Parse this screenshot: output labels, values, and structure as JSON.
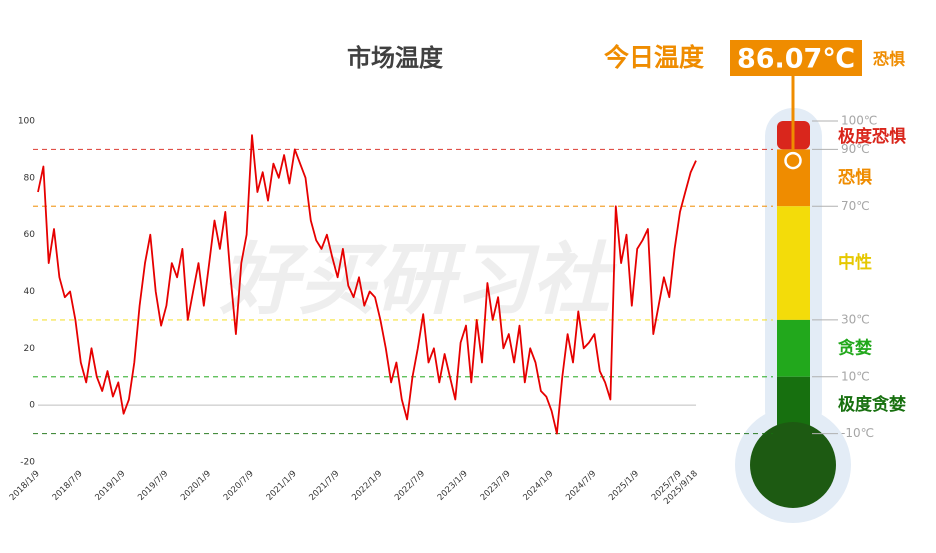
{
  "chart_data": {
    "type": "line",
    "title": "市场温度",
    "watermark": "好买研习社",
    "categories": [
      "2018/1/9",
      null,
      null,
      null,
      null,
      null,
      null,
      null,
      "2018/7/9",
      null,
      null,
      null,
      null,
      null,
      null,
      null,
      "2019/1/9",
      null,
      null,
      null,
      null,
      null,
      null,
      null,
      "2019/7/9",
      null,
      null,
      null,
      null,
      null,
      null,
      null,
      "2020/1/9",
      null,
      null,
      null,
      null,
      null,
      null,
      null,
      "2020/7/9",
      null,
      null,
      null,
      null,
      null,
      null,
      null,
      "2021/1/9",
      null,
      null,
      null,
      null,
      null,
      null,
      null,
      "2021/7/9",
      null,
      null,
      null,
      null,
      null,
      null,
      null,
      "2022/1/9",
      null,
      null,
      null,
      null,
      null,
      null,
      null,
      "2022/7/9",
      null,
      null,
      null,
      null,
      null,
      null,
      null,
      "2023/1/9",
      null,
      null,
      null,
      null,
      null,
      null,
      null,
      "2023/7/9",
      null,
      null,
      null,
      null,
      null,
      null,
      null,
      "2024/1/9",
      null,
      null,
      null,
      null,
      null,
      null,
      null,
      "2024/7/9",
      null,
      null,
      null,
      null,
      null,
      null,
      null,
      "2025/1/9",
      null,
      null,
      null,
      null,
      null,
      null,
      null,
      "2025/7/9",
      null,
      null,
      "2025/9/18"
    ],
    "series": [
      {
        "name": "市场温度",
        "color": "#e60000",
        "values": [
          75,
          84,
          50,
          62,
          45,
          38,
          40,
          30,
          15,
          8,
          20,
          10,
          5,
          12,
          3,
          8,
          -3,
          2,
          15,
          35,
          50,
          60,
          40,
          28,
          35,
          50,
          45,
          55,
          30,
          40,
          50,
          35,
          50,
          65,
          55,
          68,
          45,
          25,
          50,
          60,
          95,
          75,
          82,
          72,
          85,
          80,
          88,
          78,
          90,
          85,
          80,
          65,
          58,
          55,
          60,
          52,
          45,
          55,
          42,
          38,
          45,
          35,
          40,
          38,
          30,
          20,
          8,
          15,
          2,
          -5,
          10,
          20,
          32,
          15,
          20,
          8,
          18,
          10,
          2,
          22,
          28,
          8,
          30,
          15,
          43,
          30,
          38,
          20,
          25,
          15,
          28,
          8,
          20,
          15,
          5,
          3,
          -2,
          -10,
          10,
          25,
          15,
          33,
          20,
          22,
          25,
          12,
          8,
          2,
          70,
          50,
          60,
          35,
          55,
          58,
          62,
          25,
          35,
          45,
          38,
          55,
          68,
          75,
          82,
          86.07
        ]
      }
    ],
    "ylim": [
      -20,
      100
    ],
    "yticks": [
      -20,
      0,
      20,
      40,
      60,
      80,
      100
    ],
    "current": {
      "label": "今日温度",
      "value": 86.07,
      "value_label": "86.07℃",
      "status": "恐惧"
    },
    "thermometer": {
      "ticks": [
        {
          "value": 100,
          "label": "100℃"
        },
        {
          "value": 90,
          "label": "90℃"
        },
        {
          "value": 70,
          "label": "70℃"
        },
        {
          "value": 30,
          "label": "30℃"
        },
        {
          "value": 10,
          "label": "10℃"
        },
        {
          "value": -10,
          "label": "-10℃"
        }
      ],
      "bands": [
        {
          "from": 90,
          "to": 100,
          "color": "#d9261c",
          "label": "极度恐惧"
        },
        {
          "from": 70,
          "to": 90,
          "color": "#ef8c00",
          "label": "恐惧"
        },
        {
          "from": 30,
          "to": 70,
          "color": "#f3dc0a",
          "label": "中性"
        },
        {
          "from": 10,
          "to": 30,
          "color": "#22a81c",
          "label": "贪婪"
        },
        {
          "from": -10,
          "to": 10,
          "color": "#17700f",
          "label": "极度贪婪"
        }
      ]
    }
  }
}
